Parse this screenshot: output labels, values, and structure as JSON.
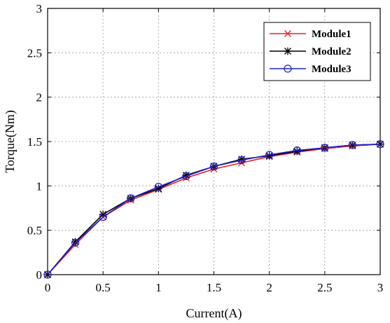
{
  "chart_data": {
    "type": "line",
    "title": "",
    "xlabel": "Current(A)",
    "ylabel": "Torque(Nm)",
    "xlim": [
      0,
      3
    ],
    "ylim": [
      0,
      3
    ],
    "xticks": [
      0,
      0.5,
      1,
      1.5,
      2,
      2.5,
      3
    ],
    "xtick_labels": [
      "0",
      "0.5",
      "1",
      "1.5",
      "2",
      "2.5",
      "3"
    ],
    "yticks": [
      0,
      0.5,
      1,
      1.5,
      2,
      2.5,
      3
    ],
    "ytick_labels": [
      "0",
      "0.5",
      "1",
      "1.5",
      "2",
      "2.5",
      "3"
    ],
    "grid": true,
    "legend_position": "top-right",
    "x": [
      0,
      0.25,
      0.5,
      0.75,
      1,
      1.25,
      1.5,
      1.75,
      2,
      2.25,
      2.5,
      2.75,
      3
    ],
    "series": [
      {
        "name": "Module1",
        "color": "#e8202a",
        "marker": "x",
        "values": [
          0,
          0.34,
          0.65,
          0.84,
          0.96,
          1.09,
          1.19,
          1.26,
          1.33,
          1.38,
          1.42,
          1.45,
          1.47
        ]
      },
      {
        "name": "Module2",
        "color": "#000000",
        "marker": "asterisk",
        "values": [
          0,
          0.37,
          0.68,
          0.86,
          0.97,
          1.12,
          1.22,
          1.3,
          1.34,
          1.39,
          1.43,
          1.46,
          1.47
        ]
      },
      {
        "name": "Module3",
        "color": "#2222cc",
        "marker": "circle",
        "values": [
          0,
          0.36,
          0.65,
          0.86,
          0.99,
          1.11,
          1.22,
          1.29,
          1.35,
          1.4,
          1.43,
          1.46,
          1.47
        ]
      }
    ]
  }
}
